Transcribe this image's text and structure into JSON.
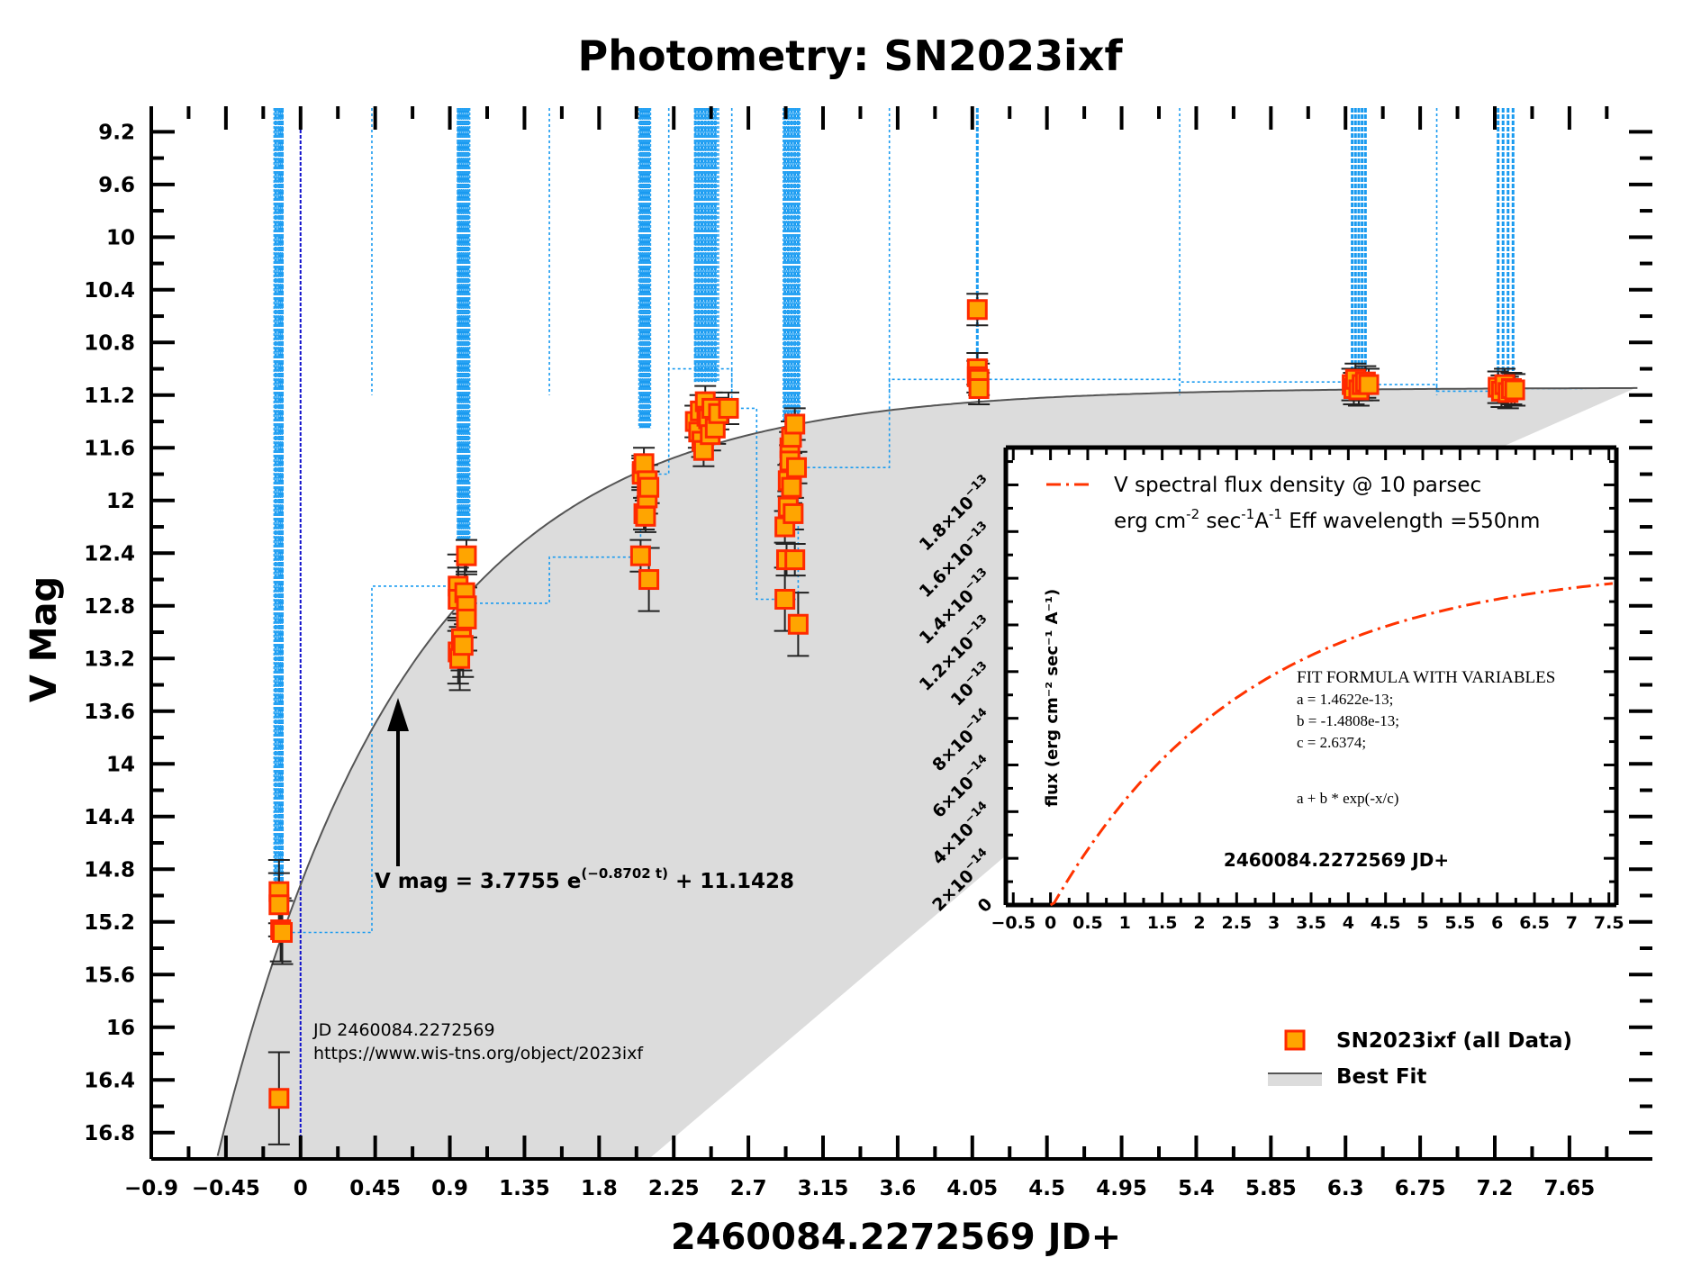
{
  "chart_data": {
    "type": "scatter",
    "title": "Photometry: SN2023ixf",
    "xlabel": "2460084.2272569 JD+",
    "ylabel": "V Mag",
    "xlim": [
      -0.9,
      8.15
    ],
    "ylim": [
      9.02,
      17.0
    ],
    "y_inverted": true,
    "x_ticks": [
      "−0.9",
      "−0.45",
      "0",
      "0.45",
      "0.9",
      "1.35",
      "1.8",
      "2.25",
      "2.7",
      "3.15",
      "3.6",
      "4.05",
      "4.5",
      "4.95",
      "5.4",
      "5.85",
      "6.3",
      "6.75",
      "7.2",
      "7.65"
    ],
    "x_tick_values": [
      -0.9,
      -0.45,
      0,
      0.45,
      0.9,
      1.35,
      1.8,
      2.25,
      2.7,
      3.15,
      3.6,
      4.05,
      4.5,
      4.95,
      5.4,
      5.85,
      6.3,
      6.75,
      7.2,
      7.65
    ],
    "y_ticks": [
      "9.2",
      "9.6",
      "10",
      "10.4",
      "10.8",
      "11.2",
      "11.6",
      "12",
      "12.4",
      "12.8",
      "13.2",
      "13.6",
      "14",
      "14.4",
      "14.8",
      "15.2",
      "15.6",
      "16",
      "16.4",
      "16.8"
    ],
    "y_tick_values": [
      9.2,
      9.6,
      10.0,
      10.4,
      10.8,
      11.2,
      11.6,
      12.0,
      12.4,
      12.8,
      13.2,
      13.6,
      14.0,
      14.4,
      14.8,
      15.2,
      15.6,
      16.0,
      16.4,
      16.8
    ],
    "series": [
      {
        "name": "SN2023ixf (all Data)",
        "points": [
          [
            -0.13,
            16.54
          ],
          [
            -0.13,
            14.97
          ],
          [
            -0.13,
            15.07
          ],
          [
            -0.12,
            15.26
          ],
          [
            -0.11,
            15.28
          ],
          [
            0.95,
            12.65
          ],
          [
            0.95,
            12.75
          ],
          [
            0.95,
            13.15
          ],
          [
            0.96,
            13.2
          ],
          [
            0.97,
            13.05
          ],
          [
            0.98,
            13.1
          ],
          [
            0.99,
            12.7
          ],
          [
            1.0,
            12.42
          ],
          [
            1.0,
            12.8
          ],
          [
            1.0,
            12.9
          ],
          [
            2.05,
            12.42
          ],
          [
            2.06,
            11.78
          ],
          [
            2.06,
            11.8
          ],
          [
            2.07,
            11.72
          ],
          [
            2.07,
            12.1
          ],
          [
            2.08,
            12.12
          ],
          [
            2.09,
            11.85
          ],
          [
            2.09,
            11.98
          ],
          [
            2.1,
            12.6
          ],
          [
            2.1,
            11.9
          ],
          [
            2.38,
            11.4
          ],
          [
            2.4,
            11.48
          ],
          [
            2.41,
            11.32
          ],
          [
            2.42,
            11.55
          ],
          [
            2.43,
            11.62
          ],
          [
            2.44,
            11.25
          ],
          [
            2.45,
            11.36
          ],
          [
            2.46,
            11.38
          ],
          [
            2.47,
            11.5
          ],
          [
            2.48,
            11.3
          ],
          [
            2.5,
            11.45
          ],
          [
            2.52,
            11.34
          ],
          [
            2.58,
            11.3
          ],
          [
            2.92,
            12.75
          ],
          [
            2.92,
            12.2
          ],
          [
            2.93,
            12.45
          ],
          [
            2.94,
            11.85
          ],
          [
            2.94,
            12.05
          ],
          [
            2.95,
            11.6
          ],
          [
            2.95,
            11.7
          ],
          [
            2.96,
            11.9
          ],
          [
            2.96,
            11.52
          ],
          [
            2.97,
            12.1
          ],
          [
            2.98,
            11.42
          ],
          [
            2.98,
            12.45
          ],
          [
            2.99,
            11.75
          ],
          [
            3.0,
            12.94
          ],
          [
            4.08,
            10.55
          ],
          [
            4.08,
            11.0
          ],
          [
            4.08,
            11.06
          ],
          [
            4.09,
            11.08
          ],
          [
            4.09,
            11.15
          ],
          [
            6.34,
            11.12
          ],
          [
            6.35,
            11.15
          ],
          [
            6.36,
            11.08
          ],
          [
            6.38,
            11.16
          ],
          [
            6.4,
            11.12
          ],
          [
            6.42,
            11.1
          ],
          [
            6.44,
            11.12
          ],
          [
            7.22,
            11.14
          ],
          [
            7.24,
            11.17
          ],
          [
            7.26,
            11.12
          ],
          [
            7.28,
            11.18
          ],
          [
            7.3,
            11.15
          ],
          [
            7.32,
            11.16
          ]
        ]
      },
      {
        "name": "Best Fit",
        "formula": "V mag = 3.7755 e^(-0.8702 t) + 11.1428"
      }
    ],
    "fit_annotation": {
      "prefix": "V mag = 3.7755 e",
      "exponent": "(−0.8702 t)",
      "suffix": " + 11.1428"
    },
    "annotations": [
      "JD 2460084.2272569",
      "https://www.wis-tns.org/object/2023ixf"
    ],
    "legend": {
      "position": "bottom-right",
      "data_label": "SN2023ixf (all Data)",
      "fit_label": "Best Fit"
    },
    "colors": {
      "marker_fill": "#ffa500",
      "marker_edge": "#ff2a00",
      "uncertainty_lines": "#1a9bf0",
      "fit_band": "#dcdcdc",
      "fit_line": "#555555",
      "inset_curve": "#ff3300",
      "jd_marker": "#1010cc"
    },
    "inset": {
      "type": "line",
      "legend_line1": "V spectral flux density @ 10 parsec",
      "legend_line2": {
        "a": "erg cm",
        "b": "-2",
        "c": " sec",
        "d": "-1",
        "e": "A",
        "f": "-1",
        "g": " Eff wavelength =550nm"
      },
      "ylabel": "flux (erg cm⁻² sec⁻¹ A⁻¹)",
      "xlabel": "2460084.2272569 JD+",
      "xlim": [
        -0.6,
        7.6
      ],
      "ylim": [
        0,
        1.96e-13
      ],
      "x_ticks": [
        "−0.5",
        "0",
        "0.5",
        "1",
        "1.5",
        "2",
        "2.5",
        "3",
        "3.5",
        "4",
        "4.5",
        "5",
        "5.5",
        "6",
        "6.5",
        "7",
        "7.5"
      ],
      "x_tick_values": [
        -0.5,
        0,
        0.5,
        1,
        1.5,
        2,
        2.5,
        3,
        3.5,
        4,
        4.5,
        5,
        5.5,
        6,
        6.5,
        7,
        7.5
      ],
      "y_ticks": [
        {
          "value": 0,
          "mant": "0",
          "exp": ""
        },
        {
          "value": 2e-14,
          "mant": "2×10",
          "exp": "−14"
        },
        {
          "value": 4e-14,
          "mant": "4×10",
          "exp": "−14"
        },
        {
          "value": 6e-14,
          "mant": "6×10",
          "exp": "−14"
        },
        {
          "value": 8e-14,
          "mant": "8×10",
          "exp": "−14"
        },
        {
          "value": 1e-13,
          "mant": "10",
          "exp": "−13"
        },
        {
          "value": 1.2e-13,
          "mant": "1.2×10",
          "exp": "−13"
        },
        {
          "value": 1.4e-13,
          "mant": "1.4×10",
          "exp": "−13"
        },
        {
          "value": 1.6e-13,
          "mant": "1.6×10",
          "exp": "−13"
        },
        {
          "value": 1.8e-13,
          "mant": "1.8×10",
          "exp": "−13"
        }
      ],
      "fit_title": "FIT FORMULA WITH VARIABLES",
      "fit_a": "a = 1.4622e-13;",
      "fit_b": "b = -1.4808e-13;",
      "fit_c": "c = 2.6374;",
      "fit_formula": "a + b * exp(-x/c)",
      "a": 1.4622e-13,
      "b": -1.4808e-13,
      "c": 2.6374
    }
  }
}
